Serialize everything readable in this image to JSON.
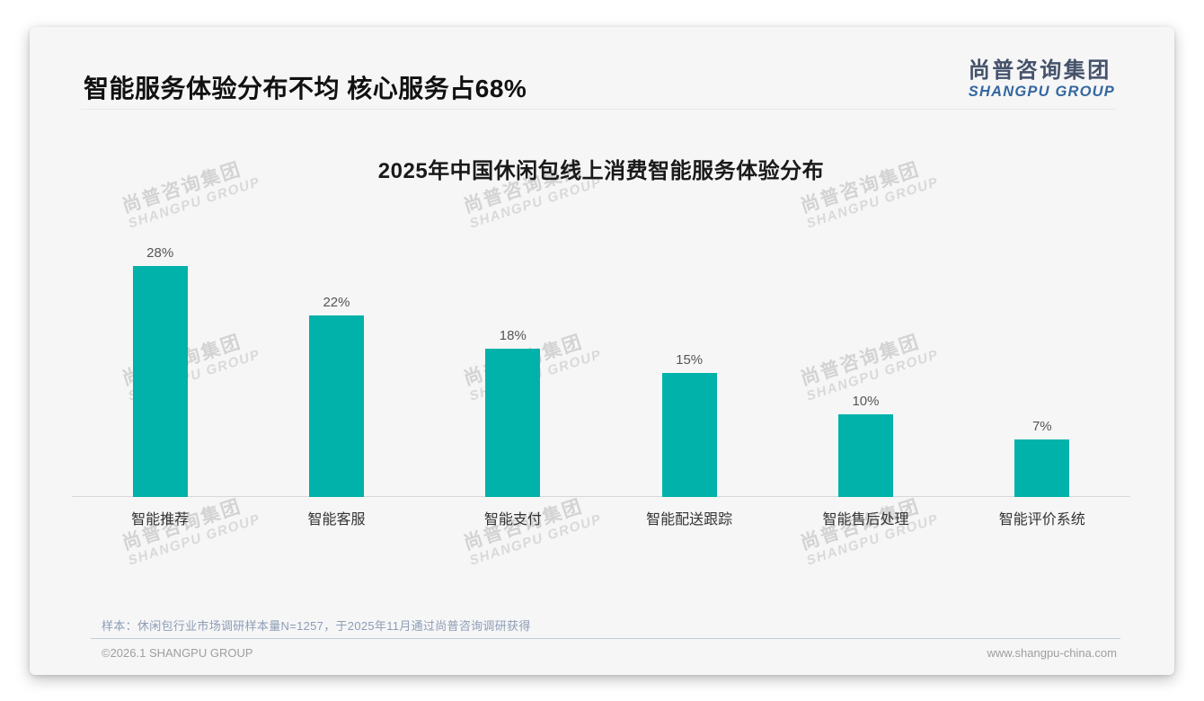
{
  "page": {
    "header": {
      "title": "智能服务体验分布不均 核心服务占68%"
    },
    "logo": {
      "cn": "尚普咨询集团",
      "en": "SHANGPU GROUP"
    },
    "watermark": {
      "cn": "尚普咨询集团",
      "en": "SHANGPU GROUP"
    },
    "footnote": "样本：休闲包行业市场调研样本量N=1257，于2025年11月通过尚普咨询调研获得",
    "footer": {
      "left": "©2026.1 SHANGPU GROUP",
      "right": "www.shangpu-china.com"
    }
  },
  "chart_data": {
    "type": "bar",
    "title": "2025年中国休闲包线上消费智能服务体验分布",
    "categories": [
      "智能推荐",
      "智能客服",
      "智能支付",
      "智能配送跟踪",
      "智能售后处理",
      "智能评价系统"
    ],
    "values": [
      28,
      22,
      18,
      15,
      10,
      7
    ],
    "value_labels": [
      "28%",
      "22%",
      "18%",
      "15%",
      "10%",
      "7%"
    ],
    "unit": "%",
    "xlabel": "",
    "ylabel": "",
    "ylim": [
      0,
      30
    ],
    "grid": false,
    "legend": false,
    "bar_color": "#00b2a9"
  },
  "colors": {
    "accent_teal": "#00b2a9",
    "logo_blue": "#34679e",
    "logo_dark": "#45526b",
    "card_bg": "#f6f6f7",
    "footnote_blue_gray": "#8d9db4",
    "axis_gray": "#d8d8d8"
  }
}
